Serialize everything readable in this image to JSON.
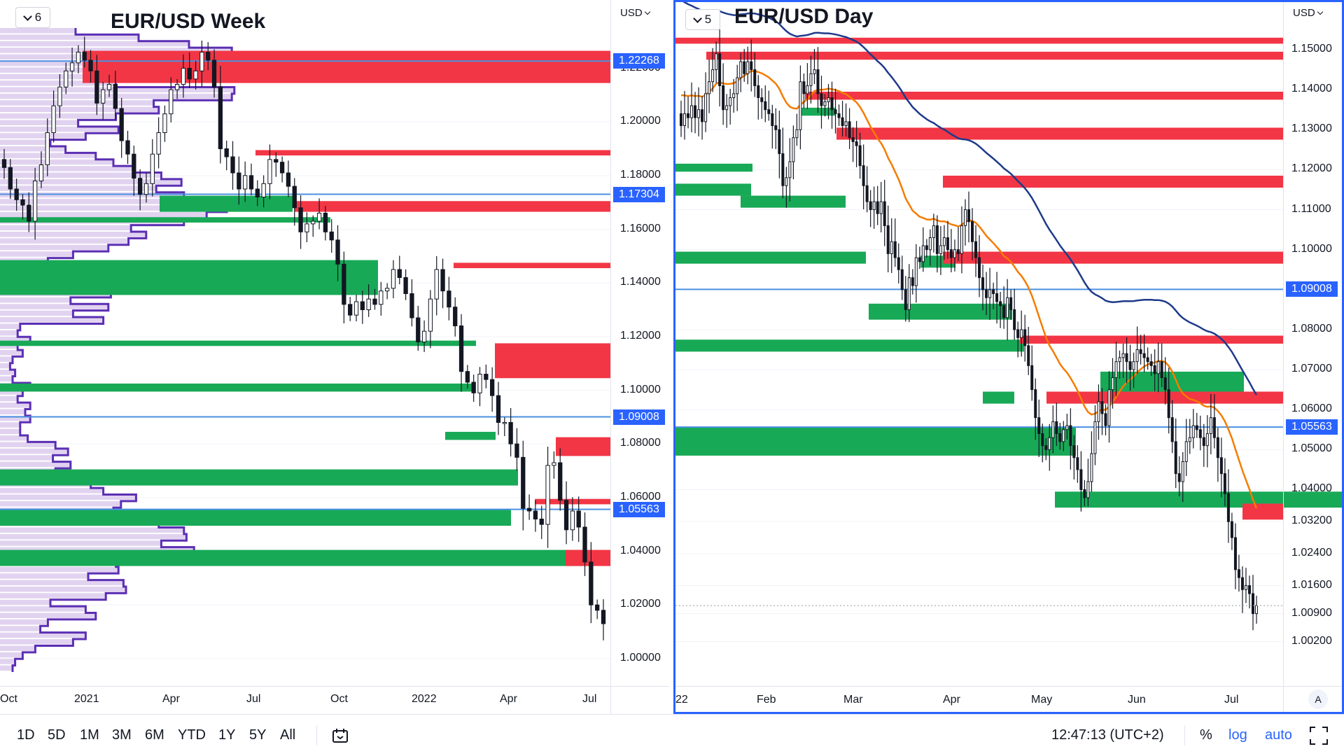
{
  "colors": {
    "up": "#ffffff",
    "down": "#131722",
    "supply": "#f23645",
    "demand": "#18a957",
    "level": "#4a90e2",
    "vol": "#d9c8ec",
    "volLine": "#5b2fb3",
    "ema_fast": "#f57c00",
    "ema_slow": "#1e3a8a",
    "accent": "#2962ff"
  },
  "left": {
    "title": "EUR/USD Week",
    "badge_count": "6",
    "currency": "USD",
    "time_ticks": [
      "Oct",
      "2021",
      "Apr",
      "Jul",
      "Oct",
      "2022",
      "Apr",
      "Jul"
    ],
    "price_ticks": [
      "1.22000",
      "1.20000",
      "1.18000",
      "1.16000",
      "1.14000",
      "1.12000",
      "1.10000",
      "1.08000",
      "1.06000",
      "1.04000",
      "1.02000",
      "1.00000"
    ],
    "levels": [
      "1.22268",
      "1.17304",
      "1.09008",
      "1.05563"
    ]
  },
  "right": {
    "title": "EUR/USD Day",
    "badge_count": "5",
    "currency": "USD",
    "time_ticks": [
      "22",
      "Feb",
      "Mar",
      "Apr",
      "May",
      "Jun",
      "Jul"
    ],
    "price_ticks": [
      "1.15000",
      "1.14000",
      "1.13000",
      "1.12000",
      "1.11000",
      "1.10000",
      "1.08000",
      "1.07000",
      "1.06000",
      "1.05000",
      "1.04000",
      "1.03200",
      "1.02400",
      "1.01600",
      "1.00900",
      "1.00200"
    ],
    "levels": [
      "1.09008",
      "1.05563"
    ],
    "auto_label": "A"
  },
  "chart_data": [
    {
      "type": "candlestick",
      "title": "EUR/USD Week",
      "timeframe": "Week",
      "x_ticks": [
        "Oct",
        "2021",
        "Apr",
        "Jul",
        "Oct",
        "2022",
        "Apr",
        "Jul"
      ],
      "ylim": [
        0.995,
        1.235
      ],
      "levels": [
        1.22268,
        1.17304,
        1.09008,
        1.05563
      ],
      "supply_zones": [
        [
          1.2145,
          1.2265
        ],
        [
          1.1875,
          1.1895
        ],
        [
          1.1665,
          1.1705
        ],
        [
          1.1455,
          1.1475
        ],
        [
          1.1045,
          1.1175
        ],
        [
          1.0755,
          1.0825
        ],
        [
          1.0575,
          1.0595
        ],
        [
          1.0345,
          1.0405
        ]
      ],
      "demand_zones": [
        [
          1.1665,
          1.1725
        ],
        [
          1.1625,
          1.1645
        ],
        [
          1.1355,
          1.1485
        ],
        [
          1.1165,
          1.1185
        ],
        [
          1.0995,
          1.1025
        ],
        [
          1.0815,
          1.0845
        ],
        [
          1.0645,
          1.0705
        ],
        [
          1.0495,
          1.0555
        ],
        [
          1.0345,
          1.0405
        ]
      ],
      "closes": [
        1.183,
        1.175,
        1.171,
        1.169,
        1.163,
        1.178,
        1.184,
        1.196,
        1.206,
        1.213,
        1.219,
        1.222,
        1.226,
        1.223,
        1.219,
        1.207,
        1.212,
        1.214,
        1.205,
        1.193,
        1.188,
        1.179,
        1.173,
        1.177,
        1.188,
        1.196,
        1.203,
        1.212,
        1.214,
        1.22,
        1.216,
        1.219,
        1.226,
        1.223,
        1.213,
        1.19,
        1.187,
        1.181,
        1.175,
        1.18,
        1.175,
        1.172,
        1.177,
        1.186,
        1.185,
        1.181,
        1.176,
        1.168,
        1.159,
        1.162,
        1.163,
        1.166,
        1.159,
        1.156,
        1.147,
        1.132,
        1.128,
        1.133,
        1.13,
        1.134,
        1.132,
        1.137,
        1.138,
        1.145,
        1.142,
        1.136,
        1.127,
        1.118,
        1.122,
        1.134,
        1.145,
        1.137,
        1.131,
        1.124,
        1.107,
        1.103,
        1.099,
        1.106,
        1.104,
        1.098,
        1.088,
        1.088,
        1.08,
        1.075,
        1.056,
        1.055,
        1.052,
        1.05,
        1.072,
        1.073,
        1.059,
        1.048,
        1.055,
        1.049,
        1.036,
        1.02,
        1.018,
        1.013
      ],
      "volume_profile": [
        0.3,
        0.55,
        0.75,
        0.92,
        0.95,
        0.62,
        0.57,
        0.41,
        0.46,
        0.93,
        0.92,
        0.61,
        0.63,
        0.46,
        0.31,
        0.47,
        0.34,
        0.2,
        0.26,
        0.38,
        0.45,
        0.53,
        0.64,
        0.72,
        0.62,
        0.73,
        0.83,
        0.9,
        0.82,
        0.73,
        0.52,
        0.58,
        0.51,
        0.43,
        0.29,
        0.19,
        0.14,
        0.16,
        0.15,
        0.32,
        0.44,
        0.28,
        0.43,
        0.29,
        0.41,
        0.08,
        0.07,
        0.12,
        0.07,
        0.09,
        0.05,
        0.04,
        0.06,
        0.05,
        0.12,
        0.09,
        0.07,
        0.12,
        0.1,
        0.12,
        0.08,
        0.08,
        0.11,
        0.22,
        0.27,
        0.21,
        0.28,
        0.22,
        0.2,
        0.36,
        0.41,
        0.54,
        0.48,
        0.45,
        0.59,
        0.63,
        0.73,
        0.74,
        0.64,
        0.77,
        0.56,
        0.46,
        0.47,
        0.35,
        0.49,
        0.5,
        0.42,
        0.2,
        0.34,
        0.38,
        0.19,
        0.16,
        0.34,
        0.29,
        0.14,
        0.09,
        0.06,
        0.05
      ]
    },
    {
      "type": "candlestick",
      "title": "EUR/USD Day",
      "timeframe": "Day",
      "x_ticks": [
        "22",
        "Feb",
        "Mar",
        "Apr",
        "May",
        "Jun",
        "Jul"
      ],
      "ylim": [
        1.0,
        1.1535
      ],
      "levels": [
        1.09008,
        1.05563
      ],
      "supply_zones": [
        [
          1.1515,
          1.153
        ],
        [
          1.1475,
          1.1495
        ],
        [
          1.1375,
          1.1395
        ],
        [
          1.1275,
          1.1305
        ],
        [
          1.1155,
          1.1185
        ],
        [
          1.0965,
          1.0995
        ],
        [
          1.0765,
          1.0785
        ],
        [
          1.0615,
          1.0645
        ],
        [
          1.0325,
          1.0365
        ]
      ],
      "demand_zones": [
        [
          1.1335,
          1.1355
        ],
        [
          1.1195,
          1.1215
        ],
        [
          1.1135,
          1.1165
        ],
        [
          1.1105,
          1.1135
        ],
        [
          1.0965,
          1.0995
        ],
        [
          1.0955,
          1.0985
        ],
        [
          1.0825,
          1.0865
        ],
        [
          1.0745,
          1.0775
        ],
        [
          1.0615,
          1.0645
        ],
        [
          1.0625,
          1.0695
        ],
        [
          1.0355,
          1.0395
        ],
        [
          1.0485,
          1.0555
        ]
      ],
      "closes": [
        1.131,
        1.134,
        1.133,
        1.136,
        1.133,
        1.135,
        1.132,
        1.139,
        1.142,
        1.145,
        1.149,
        1.141,
        1.135,
        1.136,
        1.138,
        1.139,
        1.143,
        1.147,
        1.144,
        1.147,
        1.145,
        1.141,
        1.138,
        1.137,
        1.135,
        1.134,
        1.131,
        1.13,
        1.124,
        1.116,
        1.118,
        1.122,
        1.128,
        1.13,
        1.142,
        1.139,
        1.141,
        1.144,
        1.145,
        1.139,
        1.136,
        1.137,
        1.138,
        1.135,
        1.134,
        1.133,
        1.131,
        1.132,
        1.128,
        1.127,
        1.126,
        1.121,
        1.116,
        1.112,
        1.11,
        1.112,
        1.109,
        1.112,
        1.106,
        1.099,
        1.102,
        1.098,
        1.095,
        1.09,
        1.085,
        1.093,
        1.091,
        1.098,
        1.097,
        1.101,
        1.1,
        1.103,
        1.106,
        1.099,
        1.101,
        1.103,
        1.1,
        1.098,
        1.1,
        1.099,
        1.106,
        1.11,
        1.107,
        1.102,
        1.098,
        1.093,
        1.09,
        1.088,
        1.09,
        1.089,
        1.087,
        1.086,
        1.083,
        1.088,
        1.085,
        1.08,
        1.078,
        1.08,
        1.076,
        1.071,
        1.065,
        1.058,
        1.054,
        1.051,
        1.05,
        1.053,
        1.057,
        1.054,
        1.052,
        1.055,
        1.056,
        1.051,
        1.048,
        1.045,
        1.04,
        1.038,
        1.042,
        1.049,
        1.057,
        1.062,
        1.059,
        1.056,
        1.065,
        1.068,
        1.072,
        1.073,
        1.074,
        1.072,
        1.07,
        1.072,
        1.075,
        1.074,
        1.073,
        1.072,
        1.071,
        1.069,
        1.072,
        1.068,
        1.065,
        1.058,
        1.052,
        1.044,
        1.042,
        1.047,
        1.052,
        1.053,
        1.056,
        1.055,
        1.053,
        1.051,
        1.054,
        1.058,
        1.053,
        1.048,
        1.044,
        1.039,
        1.032,
        1.028,
        1.02,
        1.018,
        1.015,
        1.016,
        1.014,
        1.009,
        1.011
      ]
    }
  ],
  "toolbar": {
    "timeframes": [
      "1D",
      "5D",
      "1M",
      "3M",
      "6M",
      "YTD",
      "1Y",
      "5Y",
      "All"
    ],
    "clock": "12:47:13 (UTC+2)",
    "pct_label": "%",
    "log_label": "log",
    "auto_label": "auto"
  }
}
